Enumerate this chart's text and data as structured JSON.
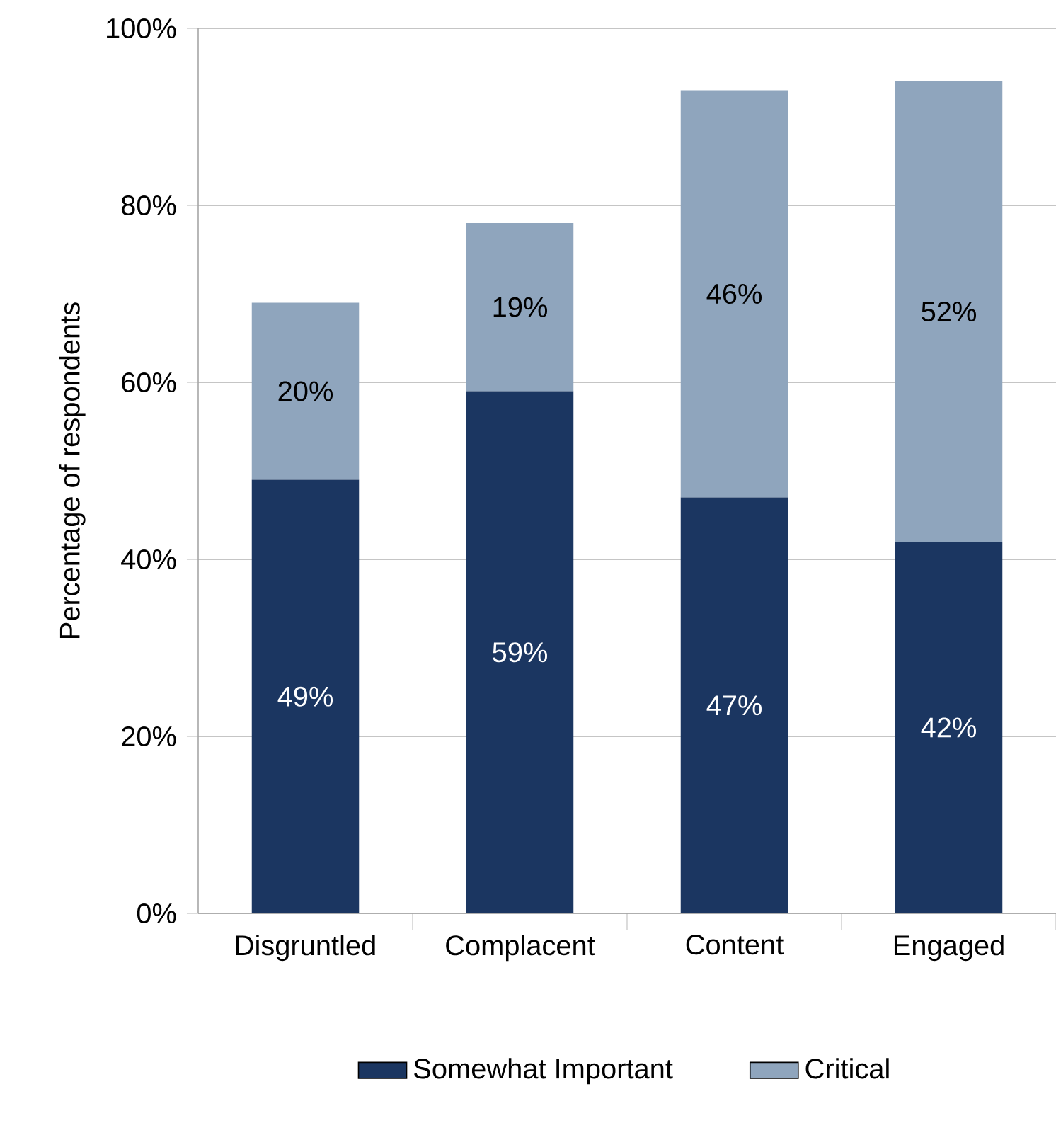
{
  "chart_data": {
    "type": "bar",
    "stacked": true,
    "ylabel": "Percentage of respondents",
    "categories": [
      "Disgruntled",
      "Complacent",
      "Content",
      "Engaged"
    ],
    "series": [
      {
        "name": "Somewhat Important",
        "color": "#1b3661",
        "values": [
          49,
          59,
          47,
          42
        ],
        "value_labels": [
          "49%",
          "59%",
          "47%",
          "42%"
        ]
      },
      {
        "name": "Critical",
        "color": "#8fa5bd",
        "values": [
          20,
          19,
          46,
          52
        ],
        "value_labels": [
          "20%",
          "19%",
          "46%",
          "52%"
        ]
      }
    ],
    "ylim": [
      0,
      100
    ],
    "yticks": [
      {
        "value": 0,
        "label": "0%"
      },
      {
        "value": 20,
        "label": "20%"
      },
      {
        "value": 40,
        "label": "40%"
      },
      {
        "value": 60,
        "label": "60%"
      },
      {
        "value": 80,
        "label": "80%"
      },
      {
        "value": 100,
        "label": "100%"
      }
    ],
    "grid": "y",
    "legend": "bottom"
  }
}
